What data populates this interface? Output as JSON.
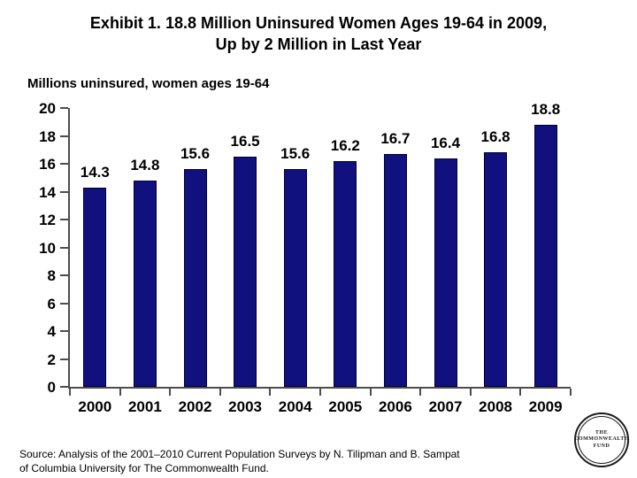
{
  "slide": {
    "title_line1": "Exhibit 1. 18.8 Million Uninsured Women Ages 19-64 in 2009,",
    "title_line2": "Up by 2 Million in Last Year",
    "subtitle": "Millions uninsured, women ages 19-64",
    "source_line1": "Source: Analysis of the 2001–2010 Current Population Surveys by N. Tilipman and B. Sampat",
    "source_line2": "of Columbia University for The Commonwealth Fund.",
    "logo": {
      "line1": "THE",
      "line2": "COMMONWEALTH",
      "line3": "FUND"
    }
  },
  "chart_data": {
    "type": "bar",
    "title": "Exhibit 1. 18.8 Million Uninsured Women Ages 19-64 in 2009, Up by 2 Million in Last Year",
    "subtitle": "Millions uninsured, women ages 19-64",
    "categories": [
      "2000",
      "2001",
      "2002",
      "2003",
      "2004",
      "2005",
      "2006",
      "2007",
      "2008",
      "2009"
    ],
    "values": [
      14.3,
      14.8,
      15.6,
      16.5,
      15.6,
      16.2,
      16.7,
      16.4,
      16.8,
      18.8
    ],
    "xlabel": "",
    "ylabel": "Millions uninsured",
    "ylim": [
      0,
      20
    ],
    "ytick_step": 2,
    "grid": false,
    "legend": false,
    "data_labels": true,
    "bar_color": "#10107e",
    "bar_border_color": "#000033",
    "axis_color": "#4d4d4d",
    "text_color": "#000000"
  }
}
